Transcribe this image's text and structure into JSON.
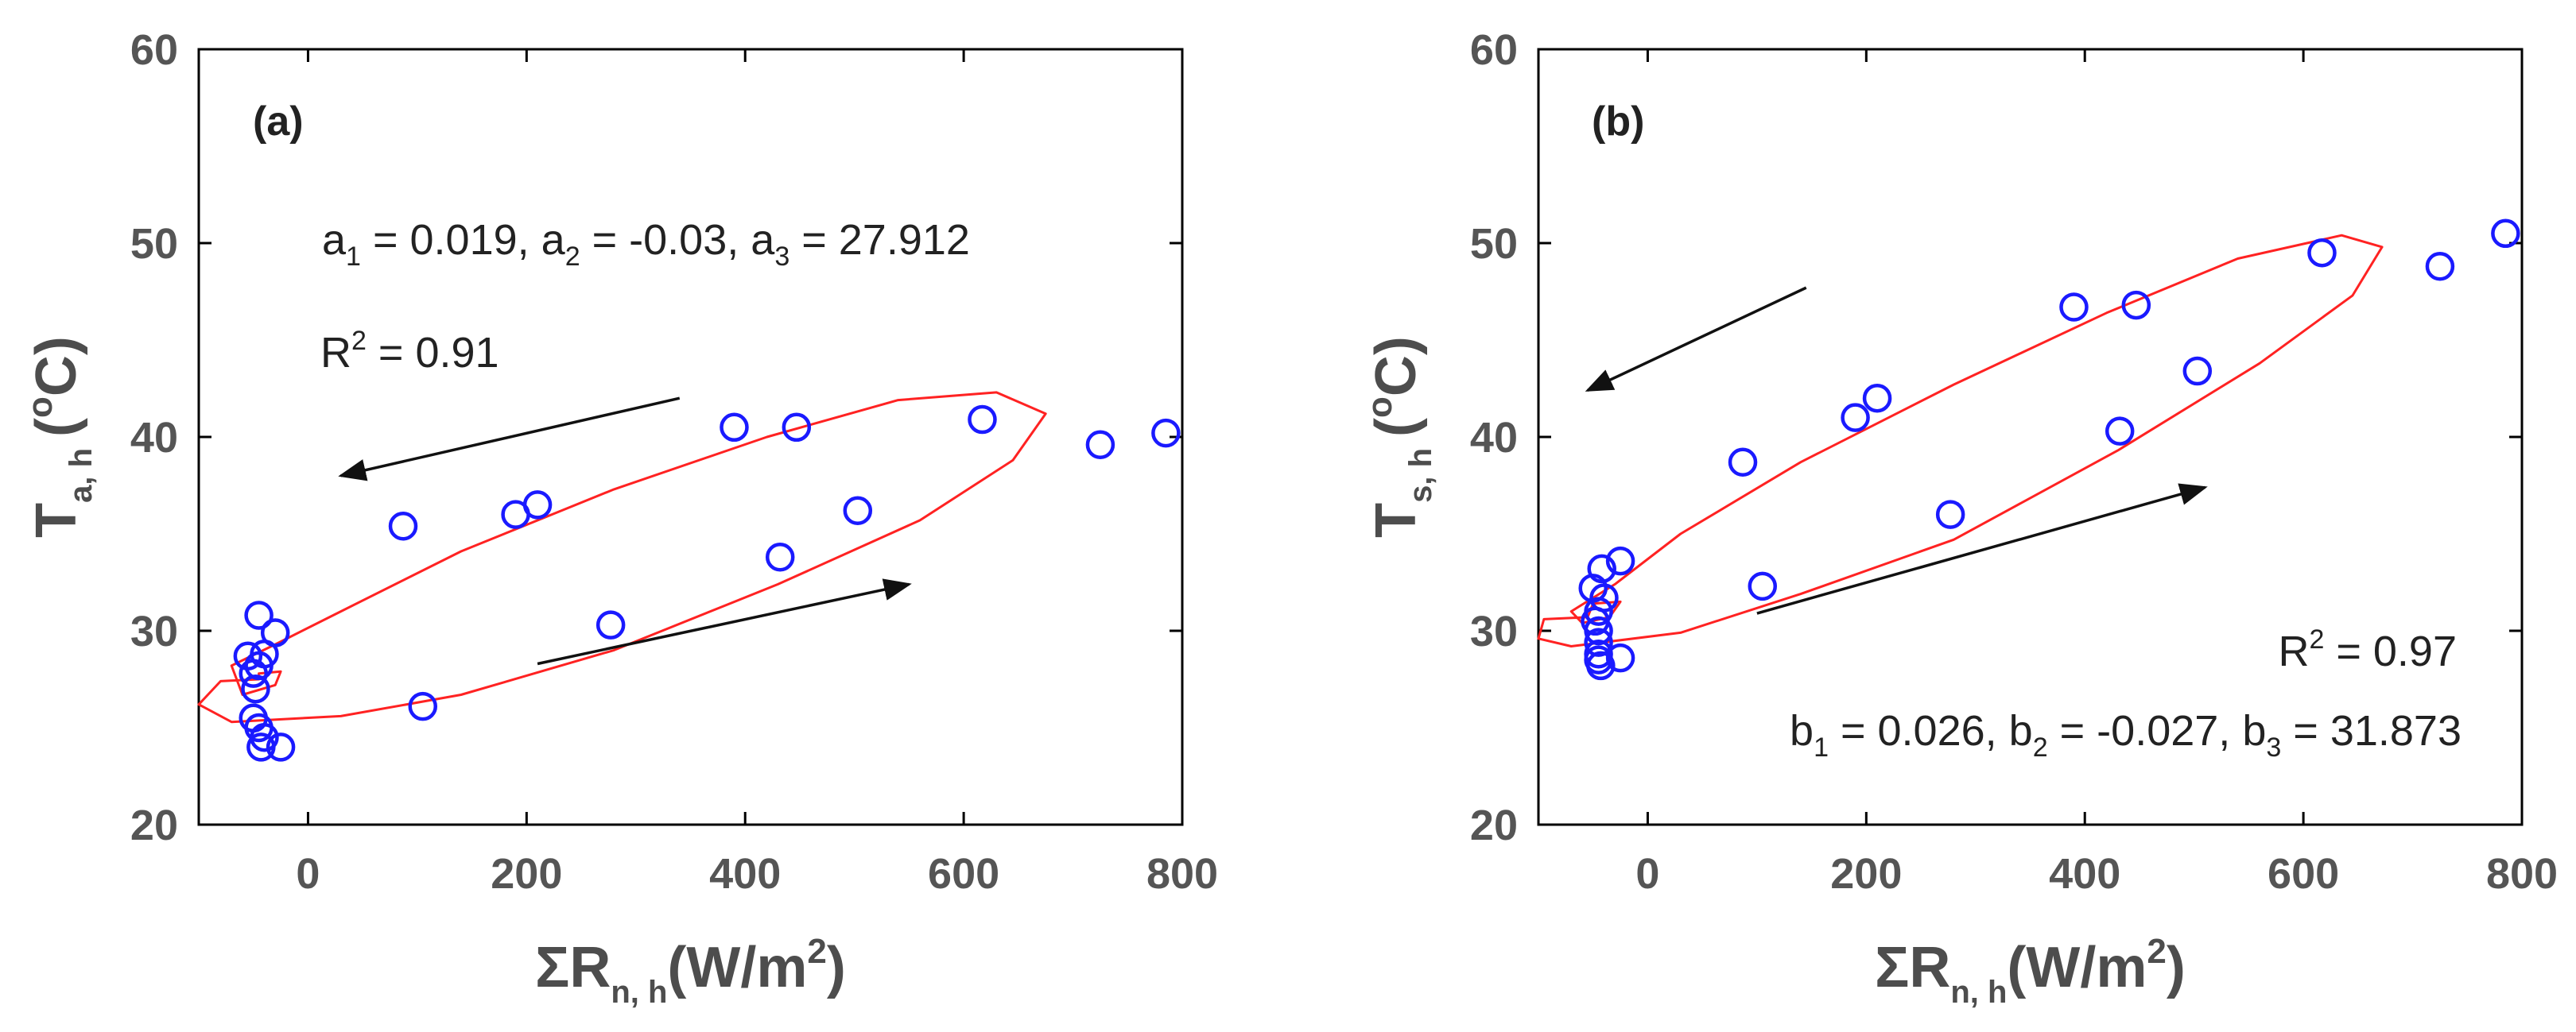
{
  "chart_data": [
    {
      "type": "scatter",
      "panel_label": "(a)",
      "xlim": [
        -100,
        800
      ],
      "ylim": [
        20,
        60
      ],
      "xticks": [
        0,
        200,
        400,
        600,
        800
      ],
      "yticks": [
        20,
        30,
        40,
        50,
        60
      ],
      "xlabel": {
        "main": "ΣR",
        "sub": "n, h",
        "unit": "(W/m",
        "sup": "2",
        "close": ")"
      },
      "ylabel": {
        "main": "T",
        "sub": "a, h",
        "unit": "(",
        "sup": "o",
        "close": "C)"
      },
      "points": [
        [
          -43,
          24.0
        ],
        [
          -25,
          24.0
        ],
        [
          -40,
          24.5
        ],
        [
          -45,
          25.0
        ],
        [
          -50,
          25.5
        ],
        [
          -48,
          27.0
        ],
        [
          -50,
          27.8
        ],
        [
          -45,
          28.2
        ],
        [
          -55,
          28.7
        ],
        [
          -40,
          28.8
        ],
        [
          -30,
          29.9
        ],
        [
          -45,
          30.8
        ],
        [
          105,
          26.1
        ],
        [
          87,
          35.4
        ],
        [
          190,
          36.0
        ],
        [
          210,
          36.5
        ],
        [
          277,
          30.3
        ],
        [
          390,
          40.5
        ],
        [
          432,
          33.8
        ],
        [
          447,
          40.5
        ],
        [
          503,
          36.2
        ],
        [
          617,
          40.9
        ],
        [
          725,
          39.6
        ],
        [
          785,
          40.2
        ]
      ],
      "fit_curve": [
        [
          -70,
          28.2
        ],
        [
          -30,
          29.3
        ],
        [
          30,
          31.0
        ],
        [
          140,
          34.1
        ],
        [
          280,
          37.3
        ],
        [
          420,
          40.0
        ],
        [
          540,
          41.9
        ],
        [
          630,
          42.3
        ],
        [
          675,
          41.2
        ],
        [
          645,
          38.8
        ],
        [
          560,
          35.7
        ],
        [
          430,
          32.4
        ],
        [
          280,
          29.0
        ],
        [
          140,
          26.7
        ],
        [
          30,
          25.6
        ],
        [
          -70,
          25.3
        ],
        [
          -100,
          26.2
        ],
        [
          -80,
          27.4
        ],
        [
          -45,
          27.5
        ],
        [
          -45,
          27.8
        ],
        [
          -25,
          27.9
        ],
        [
          -30,
          27.2
        ],
        [
          -60,
          26.7
        ]
      ],
      "arrows": [
        {
          "from": [
            340,
            42.0
          ],
          "to": [
            30,
            38.0
          ]
        },
        {
          "from": [
            210,
            28.3
          ],
          "to": [
            550,
            32.4
          ]
        }
      ],
      "annotations": {
        "r2": {
          "prefix": "R",
          "sup": "2",
          "text": " = 0.91"
        },
        "coefs": [
          {
            "sym": "a",
            "sub": "1",
            "text": " = 0.019, "
          },
          {
            "sym": "a",
            "sub": "2",
            "text": " = -0.03, "
          },
          {
            "sym": "a",
            "sub": "3",
            "text": " = 27.912"
          }
        ]
      }
    },
    {
      "type": "scatter",
      "panel_label": "(b)",
      "xlim": [
        -100,
        800
      ],
      "ylim": [
        20,
        60
      ],
      "xticks": [
        0,
        200,
        400,
        600,
        800
      ],
      "yticks": [
        20,
        30,
        40,
        50,
        60
      ],
      "xlabel": {
        "main": "ΣR",
        "sub": "n, h",
        "unit": "(W/m",
        "sup": "2",
        "close": ")"
      },
      "ylabel": {
        "main": "T",
        "sub": "s, h",
        "unit": "(",
        "sup": "o",
        "close": "C)"
      },
      "points": [
        [
          -43,
          28.2
        ],
        [
          -45,
          28.5
        ],
        [
          -45,
          28.8
        ],
        [
          -25,
          28.6
        ],
        [
          -45,
          29.4
        ],
        [
          -45,
          30.0
        ],
        [
          -48,
          30.5
        ],
        [
          -45,
          31.0
        ],
        [
          -40,
          31.7
        ],
        [
          -50,
          32.2
        ],
        [
          -42,
          33.2
        ],
        [
          -25,
          33.6
        ],
        [
          105,
          32.3
        ],
        [
          87,
          38.7
        ],
        [
          190,
          41.0
        ],
        [
          210,
          42.0
        ],
        [
          277,
          36.0
        ],
        [
          390,
          46.7
        ],
        [
          432,
          40.3
        ],
        [
          447,
          46.8
        ],
        [
          503,
          43.4
        ],
        [
          617,
          49.5
        ],
        [
          725,
          48.8
        ],
        [
          785,
          50.5
        ]
      ],
      "fit_curve": [
        [
          -70,
          31.0
        ],
        [
          -30,
          32.4
        ],
        [
          30,
          35.0
        ],
        [
          140,
          38.7
        ],
        [
          280,
          42.7
        ],
        [
          420,
          46.4
        ],
        [
          540,
          49.2
        ],
        [
          635,
          50.4
        ],
        [
          672,
          49.8
        ],
        [
          645,
          47.3
        ],
        [
          560,
          43.8
        ],
        [
          430,
          39.3
        ],
        [
          280,
          34.7
        ],
        [
          140,
          31.9
        ],
        [
          30,
          29.9
        ],
        [
          -70,
          29.2
        ],
        [
          -100,
          29.6
        ],
        [
          -95,
          30.6
        ],
        [
          -55,
          30.7
        ],
        [
          -50,
          31.4
        ],
        [
          -25,
          31.5
        ],
        [
          -35,
          30.7
        ],
        [
          -60,
          30.4
        ]
      ],
      "arrows": [
        {
          "from": [
            145,
            47.7
          ],
          "to": [
            -55,
            42.4
          ]
        },
        {
          "from": [
            100,
            30.9
          ],
          "to": [
            510,
            37.4
          ]
        }
      ],
      "annotations": {
        "r2": {
          "prefix": "R",
          "sup": "2",
          "text": "  = 0.97"
        },
        "coefs": [
          {
            "sym": "b",
            "sub": "1",
            "text": " = 0.026, "
          },
          {
            "sym": "b",
            "sub": "2",
            "text": " = -0.027, "
          },
          {
            "sym": "b",
            "sub": "3",
            "text": " = 31.873"
          }
        ]
      }
    }
  ],
  "colors": {
    "points": "#1a1aff",
    "fit": "#ff2222",
    "arrow": "#111111",
    "axis": "#000000"
  }
}
